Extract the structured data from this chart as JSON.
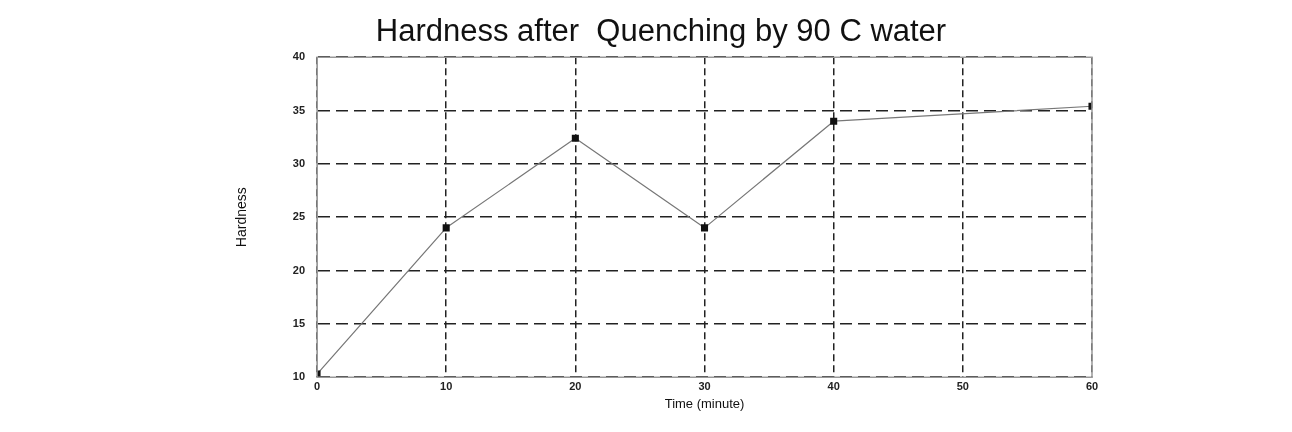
{
  "chart_data": {
    "type": "line",
    "title": "Hardness after  Quenching by 90 C water",
    "xlabel": "Time (minute)",
    "ylabel": "Hardness",
    "x": [
      0,
      10,
      20,
      30,
      40,
      60
    ],
    "series": [
      {
        "color": "#777777",
        "values": [
          10.3,
          24,
          32.4,
          24,
          34,
          35.4
        ]
      }
    ],
    "xlim": [
      0,
      60
    ],
    "xticks": [
      0,
      10,
      20,
      30,
      40,
      50,
      60
    ],
    "ylim": [
      10,
      40
    ],
    "yticks": [
      10,
      15,
      20,
      25,
      30,
      35,
      40
    ],
    "grid": true,
    "legend": false,
    "marker": "square",
    "line_style": "solid"
  }
}
